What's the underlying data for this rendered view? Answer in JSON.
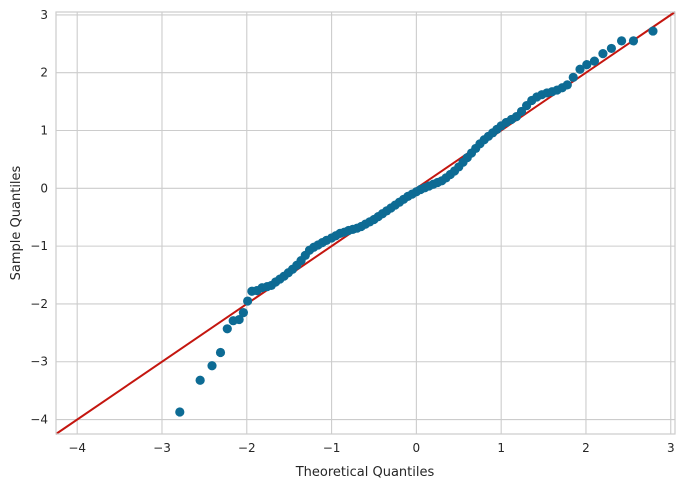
{
  "chart_data": {
    "type": "scatter",
    "xlabel": "Theoretical Quantiles",
    "ylabel": "Sample Quantiles",
    "xlim": [
      -4.25,
      3.05
    ],
    "ylim": [
      -4.25,
      3.05
    ],
    "grid": true,
    "x_ticks": [
      {
        "value": -4,
        "label": "−4"
      },
      {
        "value": -3,
        "label": "−3"
      },
      {
        "value": -2,
        "label": "−2"
      },
      {
        "value": -1,
        "label": "−1"
      },
      {
        "value": 0,
        "label": "0"
      },
      {
        "value": 1,
        "label": "1"
      },
      {
        "value": 2,
        "label": "2"
      },
      {
        "value": 3,
        "label": "3"
      }
    ],
    "y_ticks": [
      {
        "value": -4,
        "label": "−4"
      },
      {
        "value": -3,
        "label": "−3"
      },
      {
        "value": -2,
        "label": "−2"
      },
      {
        "value": -1,
        "label": "−1"
      },
      {
        "value": 0,
        "label": "0"
      },
      {
        "value": 1,
        "label": "1"
      },
      {
        "value": 2,
        "label": "2"
      },
      {
        "value": 3,
        "label": "3"
      }
    ],
    "reference_line": {
      "slope": 1,
      "intercept": 0,
      "color": "#c4160f"
    },
    "point_color": "#0d6b94",
    "series": [
      {
        "points": [
          [
            -2.79,
            -3.87
          ],
          [
            -2.55,
            -3.32
          ],
          [
            -2.41,
            -3.07
          ],
          [
            -2.31,
            -2.84
          ],
          [
            -2.23,
            -2.43
          ],
          [
            -2.16,
            -2.29
          ],
          [
            -2.09,
            -2.27
          ],
          [
            -2.04,
            -2.15
          ],
          [
            -1.99,
            -1.95
          ],
          [
            -1.94,
            -1.78
          ],
          [
            -1.88,
            -1.77
          ],
          [
            -1.82,
            -1.72
          ],
          [
            -1.76,
            -1.7
          ],
          [
            -1.71,
            -1.68
          ],
          [
            -1.66,
            -1.62
          ],
          [
            -1.61,
            -1.57
          ],
          [
            -1.56,
            -1.52
          ],
          [
            -1.51,
            -1.46
          ],
          [
            -1.46,
            -1.4
          ],
          [
            -1.41,
            -1.33
          ],
          [
            -1.36,
            -1.25
          ],
          [
            -1.31,
            -1.16
          ],
          [
            -1.26,
            -1.07
          ],
          [
            -1.21,
            -1.02
          ],
          [
            -1.16,
            -0.98
          ],
          [
            -1.11,
            -0.94
          ],
          [
            -1.06,
            -0.9
          ],
          [
            -1.0,
            -0.86
          ],
          [
            -0.95,
            -0.82
          ],
          [
            -0.9,
            -0.78
          ],
          [
            -0.85,
            -0.76
          ],
          [
            -0.8,
            -0.73
          ],
          [
            -0.75,
            -0.71
          ],
          [
            -0.7,
            -0.69
          ],
          [
            -0.65,
            -0.66
          ],
          [
            -0.6,
            -0.62
          ],
          [
            -0.55,
            -0.58
          ],
          [
            -0.5,
            -0.54
          ],
          [
            -0.45,
            -0.49
          ],
          [
            -0.4,
            -0.44
          ],
          [
            -0.35,
            -0.39
          ],
          [
            -0.3,
            -0.34
          ],
          [
            -0.25,
            -0.29
          ],
          [
            -0.2,
            -0.24
          ],
          [
            -0.15,
            -0.19
          ],
          [
            -0.1,
            -0.14
          ],
          [
            -0.05,
            -0.1
          ],
          [
            0.0,
            -0.06
          ],
          [
            0.05,
            -0.02
          ],
          [
            0.1,
            0.01
          ],
          [
            0.15,
            0.04
          ],
          [
            0.2,
            0.07
          ],
          [
            0.25,
            0.1
          ],
          [
            0.3,
            0.13
          ],
          [
            0.35,
            0.18
          ],
          [
            0.4,
            0.24
          ],
          [
            0.45,
            0.3
          ],
          [
            0.5,
            0.37
          ],
          [
            0.55,
            0.45
          ],
          [
            0.6,
            0.53
          ],
          [
            0.65,
            0.61
          ],
          [
            0.7,
            0.69
          ],
          [
            0.75,
            0.77
          ],
          [
            0.8,
            0.84
          ],
          [
            0.85,
            0.9
          ],
          [
            0.9,
            0.96
          ],
          [
            0.95,
            1.02
          ],
          [
            1.0,
            1.08
          ],
          [
            1.06,
            1.14
          ],
          [
            1.12,
            1.19
          ],
          [
            1.18,
            1.24
          ],
          [
            1.24,
            1.33
          ],
          [
            1.3,
            1.43
          ],
          [
            1.36,
            1.52
          ],
          [
            1.42,
            1.58
          ],
          [
            1.48,
            1.62
          ],
          [
            1.54,
            1.65
          ],
          [
            1.6,
            1.67
          ],
          [
            1.66,
            1.7
          ],
          [
            1.72,
            1.74
          ],
          [
            1.78,
            1.79
          ],
          [
            1.85,
            1.92
          ],
          [
            1.93,
            2.06
          ],
          [
            2.01,
            2.14
          ],
          [
            2.1,
            2.2
          ],
          [
            2.2,
            2.33
          ],
          [
            2.3,
            2.42
          ],
          [
            2.42,
            2.55
          ],
          [
            2.56,
            2.55
          ],
          [
            2.79,
            2.72
          ]
        ]
      }
    ]
  }
}
